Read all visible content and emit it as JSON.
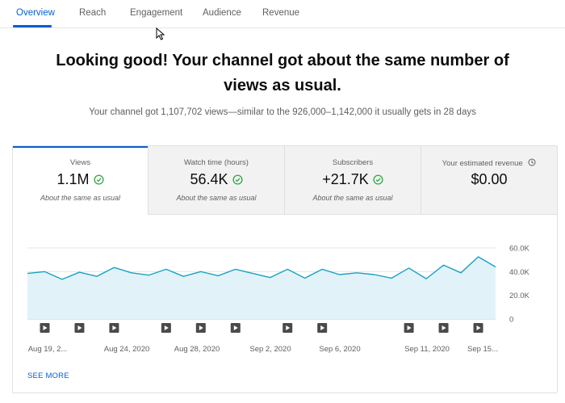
{
  "tabs": [
    {
      "label": "Overview",
      "active": true
    },
    {
      "label": "Reach",
      "active": false
    },
    {
      "label": "Engagement",
      "active": false
    },
    {
      "label": "Audience",
      "active": false
    },
    {
      "label": "Revenue",
      "active": false
    }
  ],
  "headline": "Looking good! Your channel got about the same number of views as usual.",
  "subline": "Your channel got 1,107,702 views—similar to the 926,000–1,142,000 it usually gets in 28 days",
  "metrics": [
    {
      "title": "Views",
      "value": "1.1M",
      "note": "About the same as usual",
      "active": true
    },
    {
      "title": "Watch time (hours)",
      "value": "56.4K",
      "note": "About the same as usual",
      "active": false
    },
    {
      "title": "Subscribers",
      "value": "+21.7K",
      "note": "About the same as usual",
      "active": false
    },
    {
      "title": "Your estimated revenue",
      "value": "$0.00",
      "note": "",
      "active": false
    }
  ],
  "colors": {
    "accent": "#065fd4",
    "line": "#1ba1c3",
    "area": "#e1f3f8",
    "check": "#2ba640"
  },
  "chart_data": {
    "type": "area",
    "series": [
      {
        "values": [
          38.5,
          40,
          33.5,
          39.5,
          36,
          43.5,
          39,
          37,
          42,
          36,
          40,
          36.5,
          42,
          38.5,
          35,
          42,
          34.5,
          42,
          37.5,
          39,
          37.5,
          34.5,
          43,
          34,
          45.5,
          39,
          52.5,
          44
        ]
      }
    ],
    "x_tick_labels": [
      "Aug 19, 2...",
      "Aug 24, 2020",
      "Aug 28, 2020",
      "Sep 2, 2020",
      "Sep 6, 2020",
      "Sep 11, 2020",
      "Sep 15..."
    ],
    "y_tick_labels": [
      "60.0K",
      "40.0K",
      "20.0K",
      "0"
    ],
    "ylim": [
      0,
      60000
    ],
    "grid": true,
    "video_marker_icon": "play-icon",
    "video_marker_count": 11
  },
  "see_more": "SEE MORE",
  "cursor_icon": "mouse-pointer-icon"
}
